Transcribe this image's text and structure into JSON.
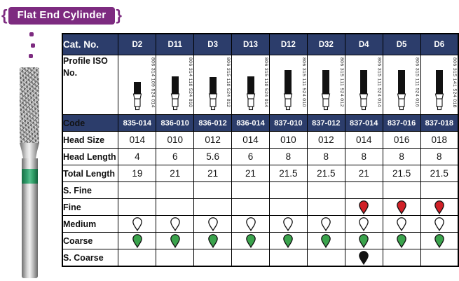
{
  "badge": {
    "label": "Flat End Cylinder",
    "color": "#7d2b80",
    "left_brace": "{",
    "right_brace": "}"
  },
  "colors": {
    "navy": "#2c3d6b",
    "purple": "#7d2b80",
    "band_green": "#2f9e66",
    "border": "#000000"
  },
  "drop_colors": {
    "red": "#d02027",
    "green": "#3aa34c",
    "white": "#ffffff",
    "black": "#111111"
  },
  "table": {
    "header": {
      "label": "Cat. No.",
      "columns": [
        "D2",
        "D11",
        "D3",
        "D13",
        "D12",
        "D32",
        "D4",
        "D5",
        "D6"
      ]
    },
    "profile": {
      "label": "Profile\nISO No.",
      "iso_numbers": [
        "806 314 109 524 014",
        "806 314 110 524 010",
        "806 315 110 524 012",
        "806 315 110 524 014",
        "806 315 111 524 010",
        "806 315 111 524 012",
        "806 315 111 524 014",
        "806 315 111 524 016",
        "806 315 141 524 018"
      ]
    },
    "rows": [
      {
        "key": "code",
        "label": "Code",
        "type": "code",
        "values": [
          "835-014",
          "836-010",
          "836-012",
          "836-014",
          "837-010",
          "837-012",
          "837-014",
          "837-016",
          "837-018"
        ]
      },
      {
        "key": "head-size",
        "label": "Head Size",
        "type": "text",
        "values": [
          "014",
          "010",
          "012",
          "014",
          "010",
          "012",
          "014",
          "016",
          "018"
        ]
      },
      {
        "key": "head-length",
        "label": "Head Length",
        "type": "text",
        "values": [
          "4",
          "6",
          "5.6",
          "6",
          "8",
          "8",
          "8",
          "8",
          "8"
        ]
      },
      {
        "key": "total-length",
        "label": "Total Length",
        "type": "text",
        "values": [
          "19",
          "21",
          "21",
          "21",
          "21.5",
          "21.5",
          "21",
          "21.5",
          "21.5"
        ]
      },
      {
        "key": "s-fine",
        "label": "S. Fine",
        "type": "drops",
        "values": [
          "",
          "",
          "",
          "",
          "",
          "",
          "",
          "",
          ""
        ]
      },
      {
        "key": "fine",
        "label": "Fine",
        "type": "drops",
        "values": [
          "",
          "",
          "",
          "",
          "",
          "",
          "red",
          "red",
          "red"
        ]
      },
      {
        "key": "medium",
        "label": "Medium",
        "type": "drops",
        "values": [
          "white",
          "white",
          "white",
          "white",
          "white",
          "white",
          "white",
          "white",
          "white"
        ]
      },
      {
        "key": "coarse",
        "label": "Coarse",
        "type": "drops",
        "values": [
          "green",
          "green",
          "green",
          "green",
          "green",
          "green",
          "green",
          "green",
          "green"
        ]
      },
      {
        "key": "s-coarse",
        "label": "S. Coarse",
        "type": "drops",
        "values": [
          "",
          "",
          "",
          "",
          "",
          "",
          "black",
          "",
          ""
        ]
      }
    ]
  }
}
